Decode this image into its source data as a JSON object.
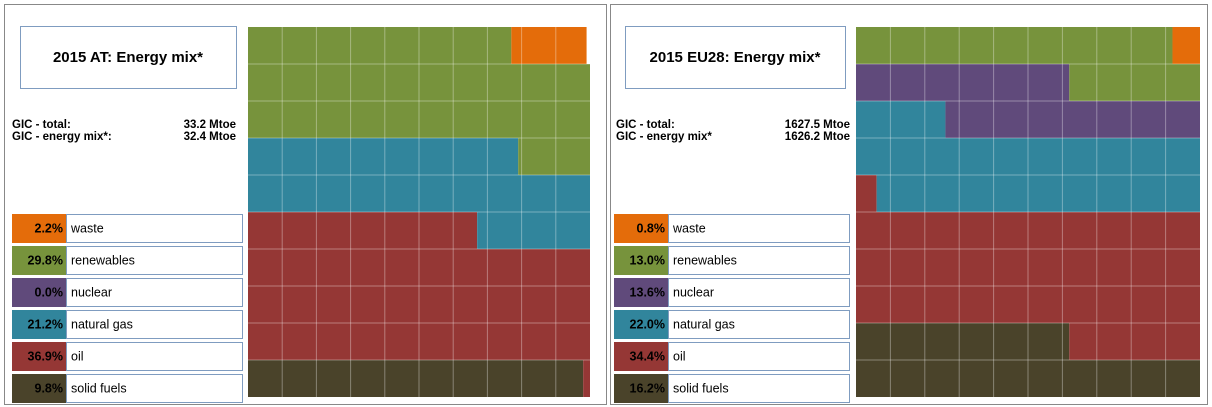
{
  "chart_data": [
    {
      "type": "waffle",
      "title": "2015 AT: Energy mix*",
      "stats": [
        {
          "label": "GIC - total:",
          "value": "33.2 Mtoe"
        },
        {
          "label": "GIC - energy mix*:",
          "value": "32.4 Mtoe"
        }
      ],
      "categories": [
        "waste",
        "renewables",
        "nuclear",
        "natural gas",
        "oil",
        "solid fuels"
      ],
      "values": [
        2.2,
        29.8,
        0.0,
        21.2,
        36.9,
        9.8
      ],
      "value_labels": [
        "2.2%",
        "29.8%",
        "0.0%",
        "21.2%",
        "36.9%",
        "9.8%"
      ],
      "colors": [
        "#e46c0a",
        "#77933c",
        "#604a7b",
        "#31859c",
        "#953735",
        "#4a432a"
      ]
    },
    {
      "type": "waffle",
      "title": "2015 EU28: Energy mix*",
      "stats": [
        {
          "label": "GIC - total:",
          "value": "1627.5 Mtoe"
        },
        {
          "label": "GIC - energy mix*",
          "value": "1626.2 Mtoe"
        }
      ],
      "categories": [
        "waste",
        "renewables",
        "nuclear",
        "natural gas",
        "oil",
        "solid fuels"
      ],
      "values": [
        0.8,
        13.0,
        13.6,
        22.0,
        34.4,
        16.2
      ],
      "value_labels": [
        "0.8%",
        "13.0%",
        "13.6%",
        "22.0%",
        "34.4%",
        "16.2%"
      ],
      "colors": [
        "#e46c0a",
        "#77933c",
        "#604a7b",
        "#31859c",
        "#953735",
        "#4a432a"
      ]
    }
  ]
}
